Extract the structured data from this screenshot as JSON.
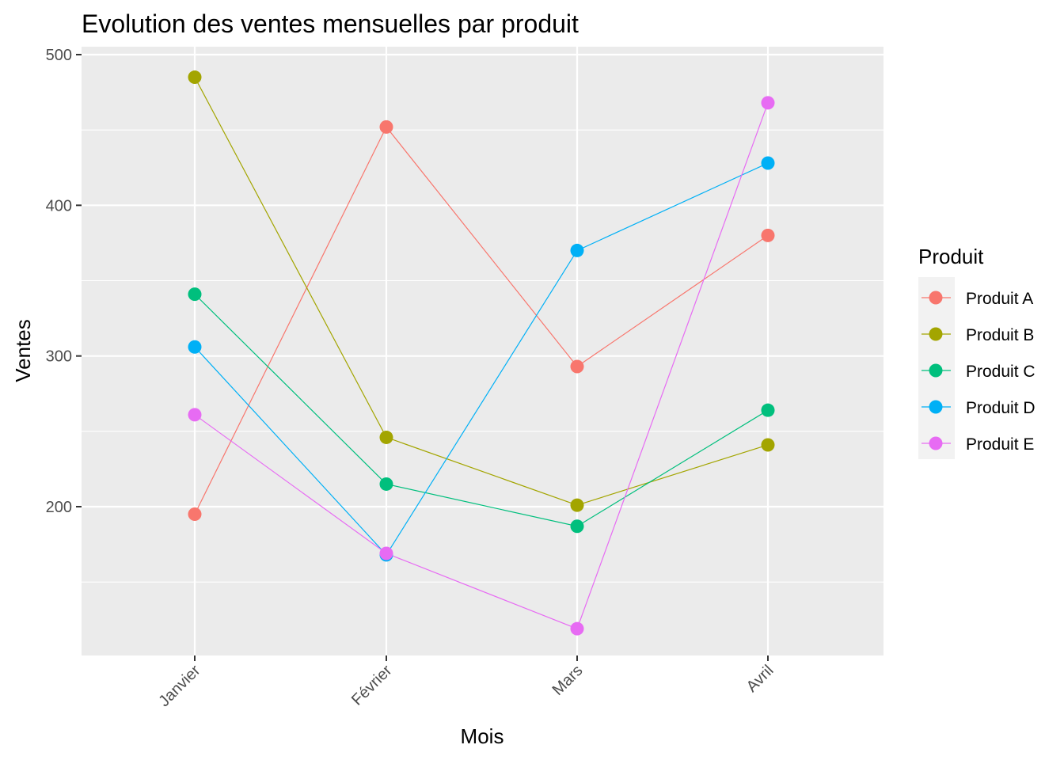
{
  "chart_data": {
    "type": "line",
    "title": "Evolution des ventes mensuelles par produit",
    "xlabel": "Mois",
    "ylabel": "Ventes",
    "categories": [
      "Janvier",
      "Février",
      "Mars",
      "Avril"
    ],
    "yticks": [
      200,
      300,
      400,
      500
    ],
    "ylim": [
      100,
      500
    ],
    "grid": true,
    "legend": {
      "title": "Produit",
      "position": "right"
    },
    "panel_color": "#ebebeb",
    "series": [
      {
        "name": "Produit A",
        "color": "#f8766d",
        "values": [
          195,
          452,
          293,
          380
        ]
      },
      {
        "name": "Produit B",
        "color": "#a3a500",
        "values": [
          485,
          246,
          201,
          241
        ]
      },
      {
        "name": "Produit C",
        "color": "#00bf7d",
        "values": [
          341,
          215,
          187,
          264
        ]
      },
      {
        "name": "Produit D",
        "color": "#00b0f6",
        "values": [
          306,
          168,
          370,
          428
        ]
      },
      {
        "name": "Produit E",
        "color": "#e76bf3",
        "values": [
          261,
          169,
          119,
          468
        ]
      }
    ]
  }
}
